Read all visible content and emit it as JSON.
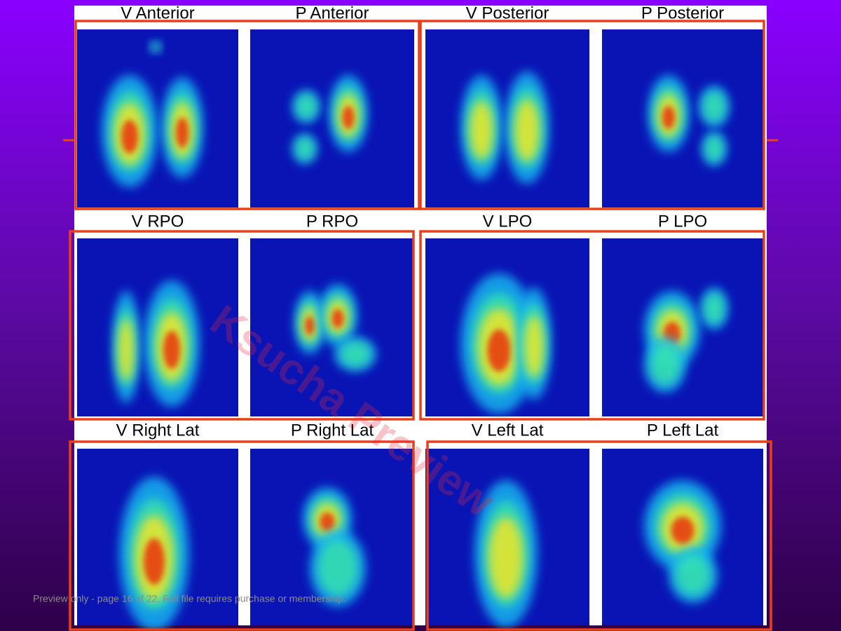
{
  "labels": [
    "V Anterior",
    "P Anterior",
    "V Posterior",
    "P Posterior",
    "V RPO",
    "P RPO",
    "V LPO",
    "P LPO",
    "V Right Lat",
    "P Right Lat",
    "V Left Lat",
    "P Left Lat"
  ],
  "watermark": "Ksucha Preview",
  "footer": "Preview only - page 16 of 22. Full file requires purchase or membership."
}
